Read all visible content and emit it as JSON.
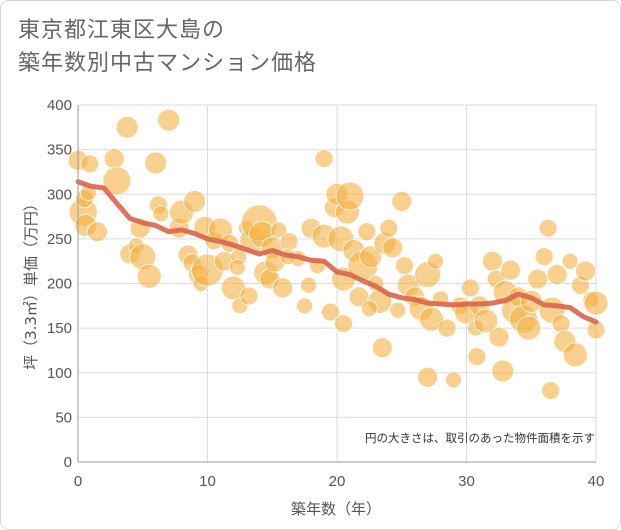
{
  "title_line1": "東京都江東区大島の",
  "title_line2": "築年数別中古マンション価格",
  "colors": {
    "bubble": "#f5b041",
    "trend": "#d9654b",
    "grid": "#d6dde6"
  },
  "chart_data": {
    "type": "scatter",
    "xlabel": "築年数（年）",
    "ylabel": "坪（3.3㎡）単価（万円）",
    "xlim": [
      0,
      40
    ],
    "ylim": [
      0,
      400
    ],
    "xticks": [
      "0",
      "10",
      "20",
      "30",
      "40"
    ],
    "yticks": [
      "0",
      "50",
      "100",
      "150",
      "200",
      "250",
      "300",
      "350",
      "400"
    ],
    "annotation": "円の大きさは、取引のあった物件面積を示す",
    "grid": true,
    "trend": {
      "x": [
        0,
        1,
        2,
        3,
        4,
        5,
        6,
        7,
        8,
        9,
        10,
        11,
        12,
        13,
        14,
        15,
        16,
        17,
        18,
        19,
        20,
        21,
        22,
        23,
        24,
        25,
        26,
        27,
        28,
        29,
        30,
        31,
        32,
        33,
        34,
        35,
        36,
        37,
        38,
        39,
        40
      ],
      "y": [
        314,
        309,
        307,
        290,
        273,
        268,
        265,
        258,
        260,
        256,
        250,
        247,
        243,
        238,
        233,
        237,
        232,
        230,
        226,
        225,
        213,
        210,
        203,
        197,
        188,
        184,
        182,
        178,
        177,
        176,
        177,
        177,
        178,
        181,
        188,
        184,
        176,
        175,
        173,
        163,
        157
      ]
    },
    "points": [
      [
        0,
        338,
        10
      ],
      [
        0.4,
        280,
        14
      ],
      [
        0.5,
        295,
        9
      ],
      [
        0.9,
        334,
        9
      ],
      [
        0.6,
        265,
        11
      ],
      [
        1.5,
        258,
        10
      ],
      [
        0.8,
        302,
        8
      ],
      [
        2.8,
        340,
        10
      ],
      [
        3,
        315,
        14
      ],
      [
        3.8,
        375,
        11
      ],
      [
        4,
        233,
        10
      ],
      [
        4.5,
        242,
        8
      ],
      [
        4.8,
        262,
        10
      ],
      [
        5,
        230,
        13
      ],
      [
        5.5,
        208,
        12
      ],
      [
        6,
        335,
        11
      ],
      [
        6.2,
        288,
        9
      ],
      [
        6.4,
        278,
        8
      ],
      [
        7,
        383,
        11
      ],
      [
        7.8,
        262,
        10
      ],
      [
        8,
        280,
        12
      ],
      [
        8.5,
        232,
        10
      ],
      [
        8.8,
        223,
        9
      ],
      [
        9,
        292,
        11
      ],
      [
        9.3,
        210,
        10
      ],
      [
        9.5,
        200,
        8
      ],
      [
        9.8,
        263,
        11
      ],
      [
        10,
        215,
        16
      ],
      [
        10.5,
        248,
        9
      ],
      [
        11,
        260,
        12
      ],
      [
        11.3,
        225,
        10
      ],
      [
        11.7,
        245,
        9
      ],
      [
        12,
        195,
        12
      ],
      [
        12.4,
        230,
        8
      ],
      [
        12.5,
        175,
        8
      ],
      [
        13,
        262,
        8
      ],
      [
        13.5,
        248,
        13
      ],
      [
        14,
        268,
        18
      ],
      [
        14.2,
        255,
        13
      ],
      [
        14.5,
        212,
        12
      ],
      [
        14.8,
        205,
        10
      ],
      [
        15,
        240,
        11
      ],
      [
        15.5,
        260,
        8
      ],
      [
        15.8,
        195,
        10
      ],
      [
        16.3,
        247,
        9
      ],
      [
        17,
        228,
        8
      ],
      [
        17.5,
        175,
        8
      ],
      [
        18,
        262,
        10
      ],
      [
        18.5,
        220,
        8
      ],
      [
        19,
        340,
        9
      ],
      [
        19,
        253,
        12
      ],
      [
        19.8,
        285,
        10
      ],
      [
        20,
        300,
        11
      ],
      [
        20.3,
        250,
        13
      ],
      [
        20.5,
        205,
        12
      ],
      [
        20.8,
        280,
        12
      ],
      [
        21,
        298,
        14
      ],
      [
        21.3,
        237,
        11
      ],
      [
        21.7,
        185,
        10
      ],
      [
        22,
        220,
        15
      ],
      [
        22.3,
        258,
        9
      ],
      [
        22.6,
        230,
        11
      ],
      [
        23,
        200,
        8
      ],
      [
        23.3,
        180,
        12
      ],
      [
        23.7,
        245,
        11
      ],
      [
        24,
        262,
        9
      ],
      [
        24.3,
        240,
        10
      ],
      [
        24.7,
        170,
        8
      ],
      [
        25,
        292,
        10
      ],
      [
        25.2,
        220,
        9
      ],
      [
        25.5,
        198,
        11
      ],
      [
        26,
        185,
        10
      ],
      [
        26.5,
        172,
        12
      ],
      [
        27,
        210,
        13
      ],
      [
        27.3,
        160,
        12
      ],
      [
        27.6,
        225,
        8
      ],
      [
        28,
        183,
        8
      ],
      [
        28.5,
        150,
        9
      ],
      [
        29,
        92,
        8
      ],
      [
        29.5,
        175,
        9
      ],
      [
        30,
        168,
        12
      ],
      [
        30.3,
        195,
        9
      ],
      [
        30.7,
        150,
        8
      ],
      [
        31,
        175,
        10
      ],
      [
        31.5,
        158,
        12
      ],
      [
        32,
        225,
        10
      ],
      [
        32.3,
        205,
        9
      ],
      [
        32.5,
        140,
        10
      ],
      [
        32.8,
        102,
        11
      ],
      [
        33,
        190,
        12
      ],
      [
        33.4,
        215,
        10
      ],
      [
        33.7,
        170,
        13
      ],
      [
        34,
        185,
        10
      ],
      [
        34.4,
        160,
        14
      ],
      [
        34.8,
        150,
        12
      ],
      [
        35,
        180,
        11
      ],
      [
        35.5,
        205,
        10
      ],
      [
        36,
        230,
        9
      ],
      [
        36.3,
        262,
        9
      ],
      [
        36.6,
        170,
        13
      ],
      [
        37,
        210,
        10
      ],
      [
        37.3,
        155,
        9
      ],
      [
        37.6,
        135,
        11
      ],
      [
        38,
        225,
        8
      ],
      [
        38.4,
        120,
        12
      ],
      [
        38.8,
        198,
        9
      ],
      [
        39.2,
        214,
        10
      ],
      [
        39.6,
        182,
        8
      ],
      [
        40,
        178,
        12
      ],
      [
        40,
        148,
        9
      ],
      [
        12.3,
        218,
        8
      ],
      [
        13.2,
        186,
        9
      ],
      [
        15.2,
        224,
        10
      ],
      [
        16.2,
        230,
        8
      ],
      [
        17.8,
        198,
        8
      ],
      [
        19.5,
        168,
        9
      ],
      [
        20.5,
        155,
        9
      ],
      [
        22.5,
        172,
        8
      ],
      [
        23.5,
        128,
        10
      ],
      [
        27,
        95,
        10
      ],
      [
        30.8,
        118,
        9
      ],
      [
        36.5,
        80,
        9
      ]
    ]
  }
}
